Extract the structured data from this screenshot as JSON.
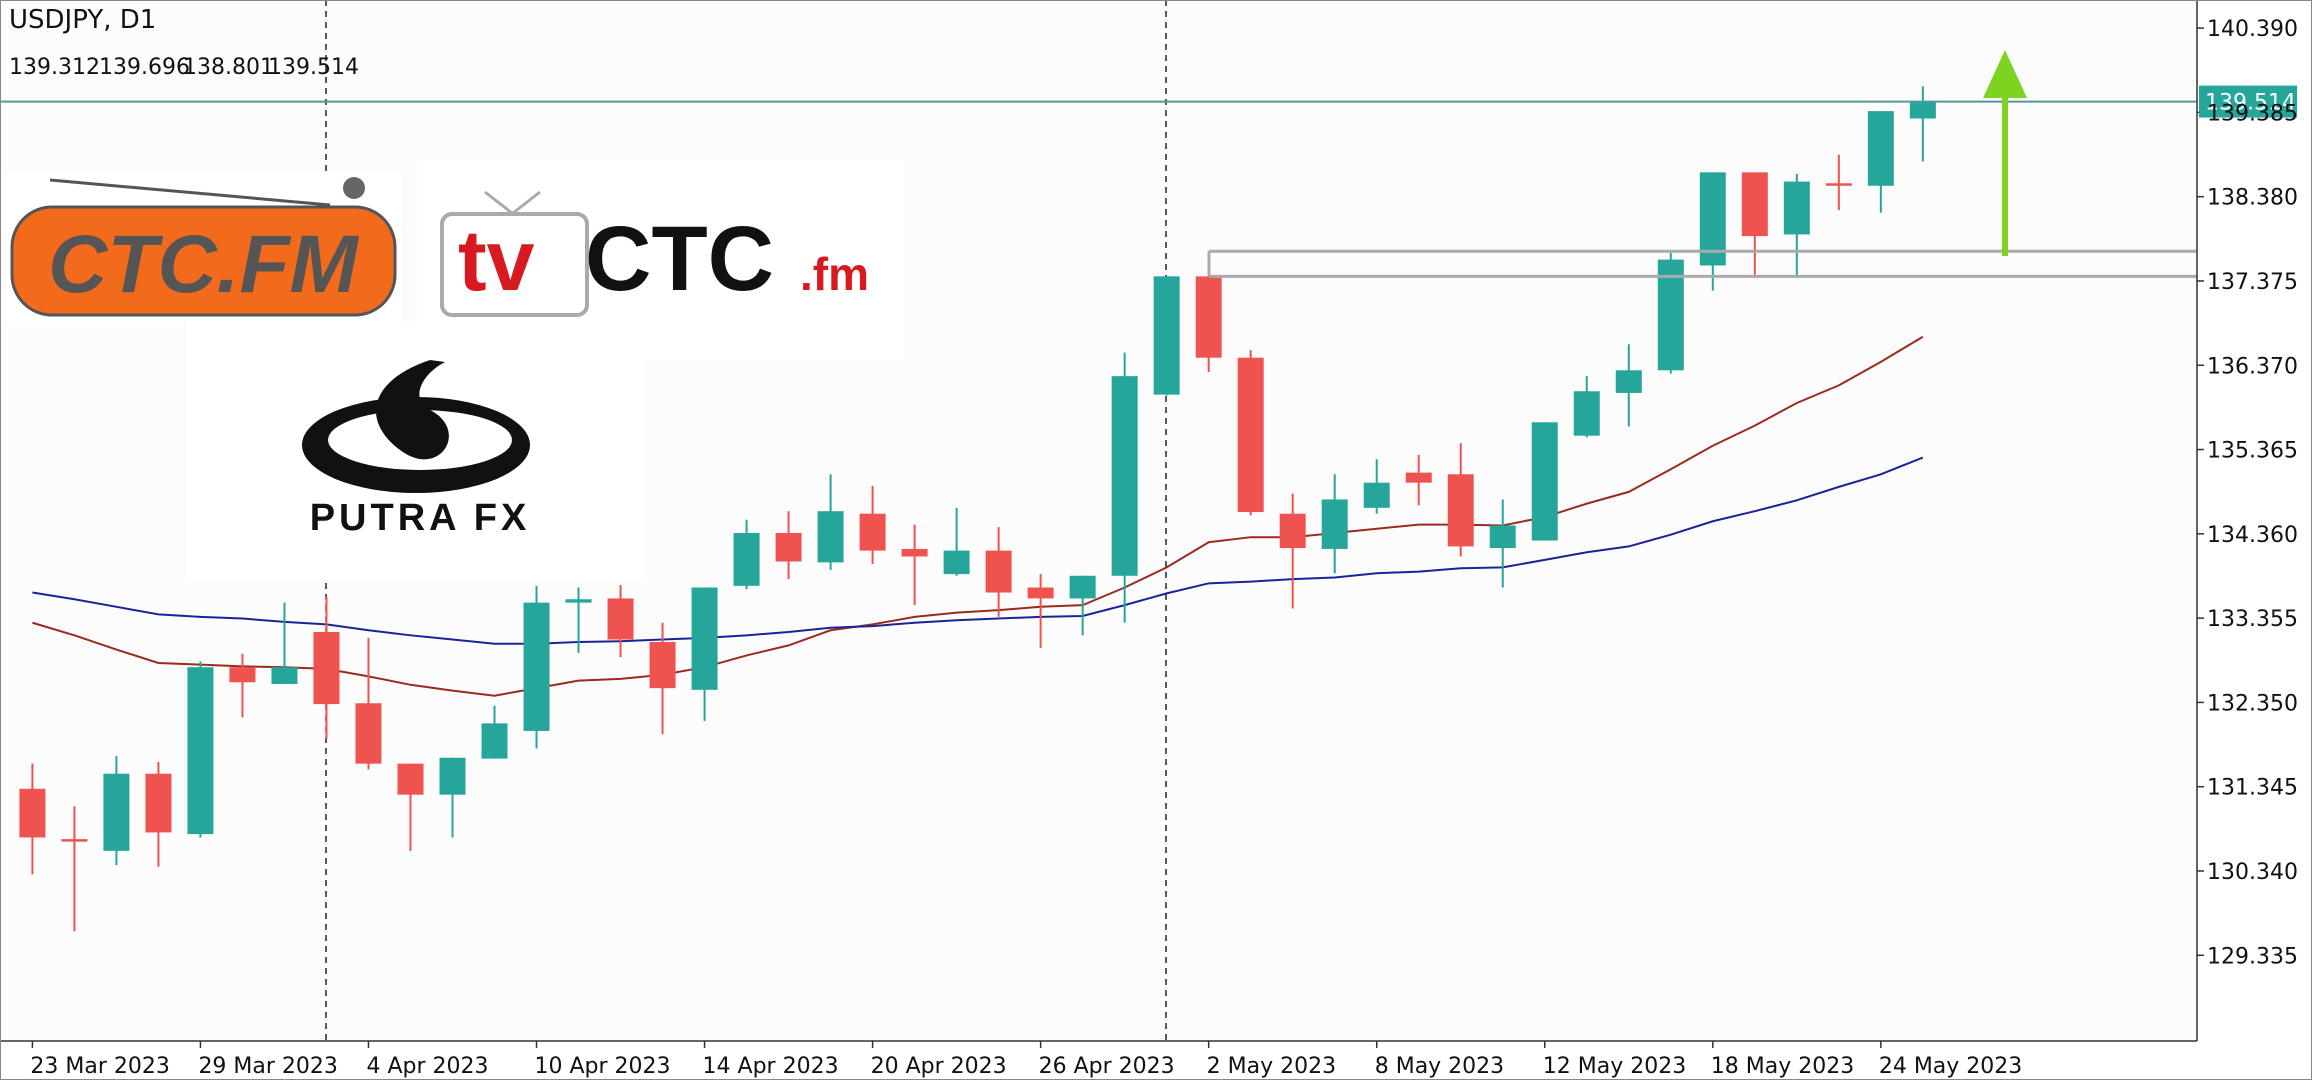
{
  "chart_data": {
    "type": "candlestick",
    "title": "USDJPY, D1",
    "categories": [
      "23 Mar 2023",
      null,
      null,
      null,
      "29 Mar 2023",
      null,
      null,
      null,
      "4 Apr 2023",
      null,
      null,
      null,
      "10 Apr 2023",
      null,
      null,
      null,
      "14 Apr 2023",
      null,
      null,
      null,
      "20 Apr 2023",
      null,
      null,
      null,
      "26 Apr 2023",
      null,
      null,
      null,
      "2 May 2023",
      null,
      null,
      null,
      "8 May 2023",
      null,
      null,
      null,
      "12 May 2023",
      null,
      null,
      null,
      "18 May 2023",
      null,
      null,
      null,
      "24 May 2023",
      null
    ],
    "open": [
      131.32,
      130.72,
      130.58,
      131.5,
      130.78,
      132.77,
      132.57,
      133.19,
      132.34,
      131.62,
      131.25,
      131.68,
      132.01,
      133.54,
      133.59,
      133.07,
      132.5,
      133.74,
      134.37,
      134.02,
      134.6,
      134.18,
      133.88,
      134.16,
      133.72,
      133.59,
      133.86,
      136.02,
      137.43,
      136.46,
      134.6,
      134.18,
      134.67,
      135.09,
      135.07,
      134.19,
      134.28,
      135.53,
      136.04,
      136.31,
      137.56,
      138.67,
      137.93,
      138.54,
      138.51,
      139.312
    ],
    "high": [
      131.62,
      131.11,
      131.71,
      131.64,
      132.84,
      132.93,
      133.54,
      133.61,
      133.12,
      131.62,
      131.69,
      132.31,
      133.74,
      133.72,
      133.75,
      133.3,
      133.72,
      134.53,
      134.63,
      135.07,
      134.93,
      134.47,
      134.67,
      134.44,
      133.88,
      133.86,
      136.52,
      137.43,
      137.52,
      136.55,
      134.84,
      135.07,
      135.25,
      135.3,
      135.44,
      134.77,
      135.69,
      136.24,
      136.62,
      137.71,
      138.67,
      138.67,
      138.65,
      138.88,
      139.4,
      139.696
    ],
    "low": [
      130.3,
      129.62,
      130.41,
      130.39,
      130.74,
      132.17,
      132.57,
      131.92,
      131.55,
      130.58,
      130.74,
      131.68,
      131.8,
      132.94,
      132.89,
      131.97,
      132.13,
      133.7,
      133.82,
      133.93,
      134.0,
      133.51,
      133.86,
      133.37,
      133.0,
      133.15,
      133.3,
      136.01,
      136.29,
      134.58,
      133.47,
      133.89,
      134.6,
      134.7,
      134.09,
      133.72,
      134.28,
      135.51,
      135.64,
      136.27,
      137.26,
      137.41,
      137.43,
      138.22,
      138.19,
      138.801
    ],
    "close": [
      130.74,
      130.69,
      131.5,
      130.8,
      132.77,
      132.59,
      132.77,
      132.33,
      131.62,
      131.25,
      131.69,
      132.1,
      133.54,
      133.58,
      133.1,
      132.52,
      133.72,
      134.37,
      134.03,
      134.63,
      134.16,
      134.09,
      134.16,
      133.66,
      133.59,
      133.86,
      136.24,
      137.43,
      136.46,
      134.62,
      134.19,
      134.77,
      134.97,
      134.97,
      134.21,
      134.46,
      135.69,
      136.06,
      136.31,
      137.63,
      138.67,
      137.91,
      138.56,
      138.51,
      139.4,
      139.514
    ],
    "up_color": "#26a69a",
    "down_color": "#ef5350",
    "lines": [
      {
        "color": "#9b2a1f",
        "values": [
          133.3,
          133.15,
          132.98,
          132.82,
          132.8,
          132.78,
          132.77,
          132.75,
          132.66,
          132.56,
          132.49,
          132.43,
          132.52,
          132.61,
          132.63,
          132.68,
          132.77,
          132.91,
          133.03,
          133.21,
          133.28,
          133.37,
          133.42,
          133.45,
          133.49,
          133.51,
          133.72,
          133.96,
          134.26,
          134.32,
          134.32,
          134.37,
          134.42,
          134.47,
          134.47,
          134.46,
          134.56,
          134.72,
          134.86,
          135.13,
          135.41,
          135.65,
          135.92,
          136.13,
          136.41,
          136.71
        ]
      },
      {
        "color": "#1a2496",
        "values": [
          133.66,
          133.58,
          133.49,
          133.4,
          133.37,
          133.35,
          133.31,
          133.28,
          133.21,
          133.15,
          133.1,
          133.05,
          133.05,
          133.07,
          133.08,
          133.1,
          133.12,
          133.15,
          133.19,
          133.24,
          133.26,
          133.3,
          133.33,
          133.35,
          133.37,
          133.38,
          133.51,
          133.65,
          133.77,
          133.79,
          133.82,
          133.84,
          133.89,
          133.91,
          133.95,
          133.96,
          134.05,
          134.14,
          134.21,
          134.35,
          134.51,
          134.63,
          134.76,
          134.92,
          135.07,
          135.27
        ]
      }
    ],
    "horizontal_lines": [
      137.73,
      137.43
    ],
    "price_line_color": "#4f9a94",
    "ylim": [
      128.313,
      140.725
    ],
    "yticks": [
      {
        "value": 140.39,
        "label": "140.390"
      },
      139.385,
      {
        "value": 138.38,
        "label": "138.380"
      },
      137.375,
      {
        "value": 136.37,
        "label": "136.370"
      },
      135.365,
      {
        "value": 134.36,
        "label": "134.360"
      },
      133.355,
      {
        "value": 132.35,
        "label": "132.350"
      },
      131.345,
      {
        "value": 130.34,
        "label": "130.340"
      },
      129.335
    ]
  },
  "logos": {
    "ctc_fm": "CTC.FM",
    "tv": "tv",
    "ctc": "CTC",
    "fm": ".fm",
    "putra": "PUTRA FX"
  }
}
